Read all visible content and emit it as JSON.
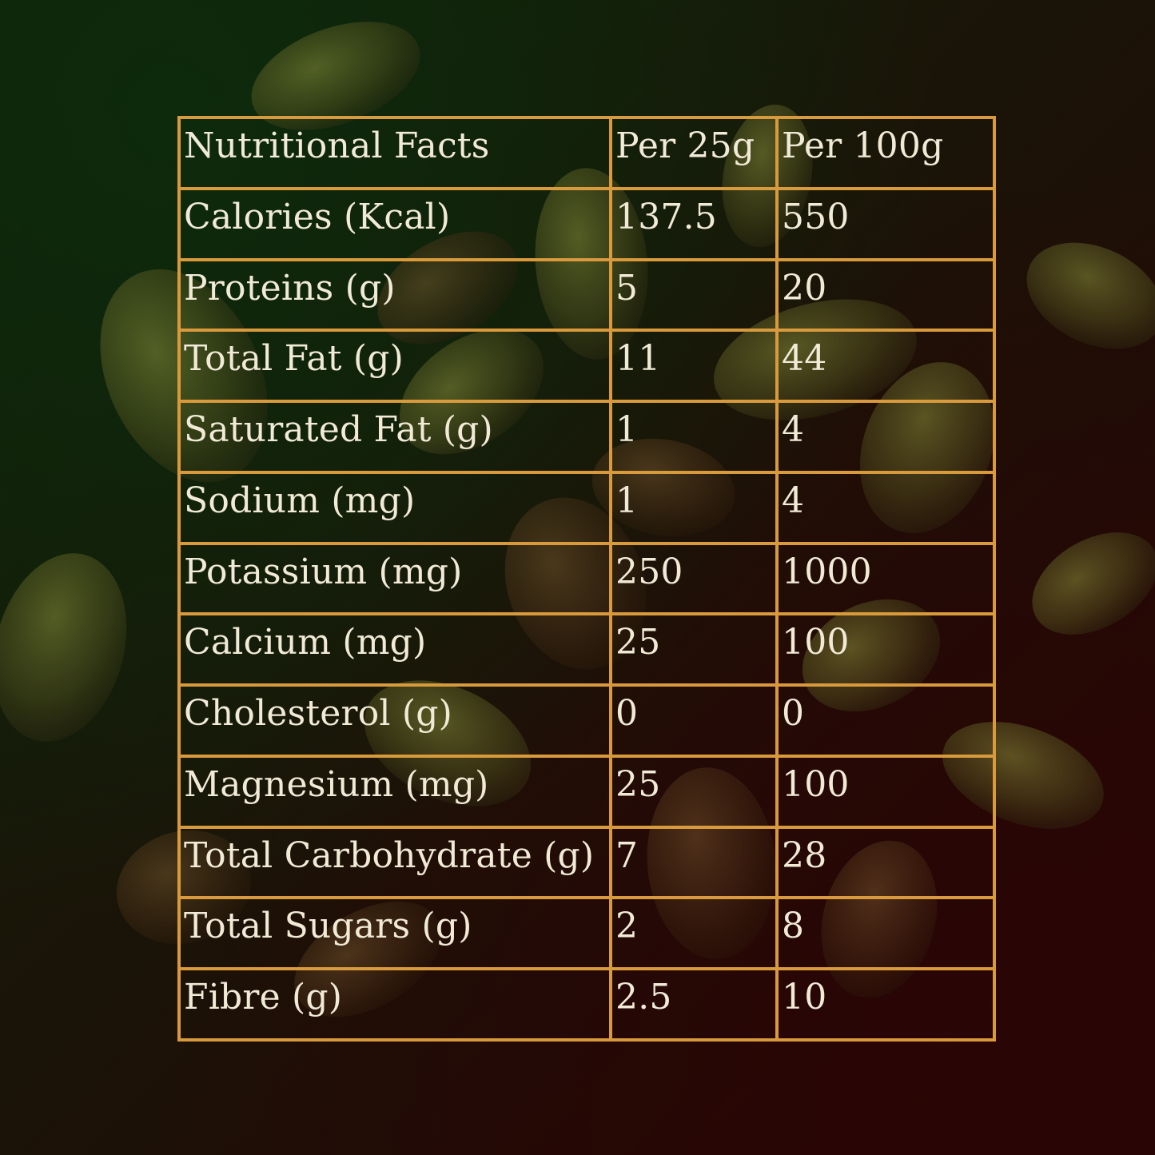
{
  "table": {
    "headers": [
      "Nutritional Facts",
      "Per 25g",
      "Per 100g"
    ],
    "rows": [
      [
        "Calories (Kcal)",
        "137.5",
        "550"
      ],
      [
        "Proteins (g)",
        "5",
        "20"
      ],
      [
        "Total Fat (g)",
        "11",
        "44"
      ],
      [
        "Saturated Fat (g)",
        "1",
        "4"
      ],
      [
        "Sodium (mg)",
        "1",
        "4"
      ],
      [
        "Potassium (mg)",
        "250",
        "1000"
      ],
      [
        "Calcium (mg)",
        "25",
        "100"
      ],
      [
        "Cholesterol (g)",
        "0",
        "0"
      ],
      [
        "Magnesium (mg)",
        "25",
        "100"
      ],
      [
        "Total Carbohydrate (g)",
        "7",
        "28"
      ],
      [
        "Total Sugars (g)",
        "2",
        "8"
      ],
      [
        "Fibre (g)",
        "2.5",
        "10"
      ]
    ]
  },
  "colors": {
    "border": "#d89a3c",
    "text": "#f1ead6",
    "background_dark_green": "#0f230b",
    "background_dark_red": "#2a0404",
    "pistachio": "#6b7a2a"
  },
  "background_image": "pistachio-kernels"
}
